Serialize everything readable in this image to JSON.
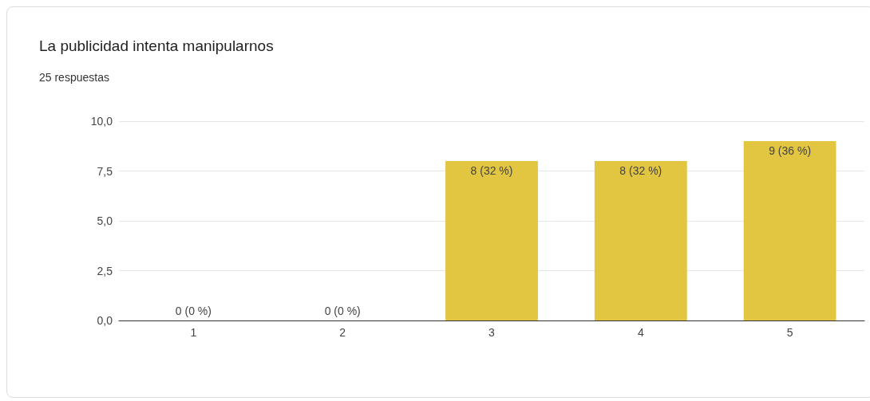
{
  "chart_data": {
    "type": "bar",
    "title": "La publicidad intenta manipularnos",
    "subtitle": "25 respuestas",
    "categories": [
      "1",
      "2",
      "3",
      "4",
      "5"
    ],
    "values": [
      0,
      0,
      8,
      8,
      9
    ],
    "value_labels": [
      "0 (0 %)",
      "0 (0 %)",
      "8 (32 %)",
      "8 (32 %)",
      "9 (36 %)"
    ],
    "color": "#e2c541",
    "ylim": [
      0,
      10
    ],
    "yticks": [
      {
        "value": 0,
        "label": "0,0"
      },
      {
        "value": 2.5,
        "label": "2,5"
      },
      {
        "value": 5,
        "label": "5,0"
      },
      {
        "value": 7.5,
        "label": "7,5"
      },
      {
        "value": 10,
        "label": "10,0"
      }
    ],
    "grid": "y"
  }
}
